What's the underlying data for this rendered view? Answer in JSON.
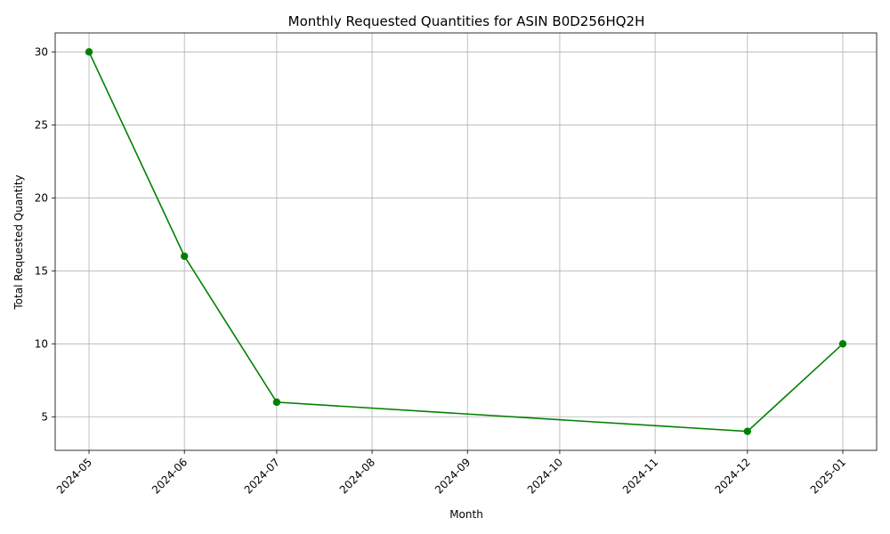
{
  "chart_data": {
    "type": "line",
    "title": "Monthly Requested Quantities for ASIN B0D256HQ2H",
    "xlabel": "Month",
    "ylabel": "Total Requested Quantity",
    "x_ticks": [
      "2024-05",
      "2024-06",
      "2024-07",
      "2024-08",
      "2024-09",
      "2024-10",
      "2024-11",
      "2024-12",
      "2025-01"
    ],
    "y_ticks": [
      5,
      10,
      15,
      20,
      25,
      30
    ],
    "ylim": [
      2.7,
      31.3
    ],
    "xlim": [
      "2024-04-20",
      "2025-01-12"
    ],
    "grid": true,
    "legend": "none",
    "series": [
      {
        "color": "#008000",
        "marker": "circle",
        "x": [
          "2024-05",
          "2024-06",
          "2024-07",
          "2024-12",
          "2025-01"
        ],
        "values": [
          30,
          16,
          6,
          4,
          10
        ]
      }
    ]
  },
  "colors": {
    "line": "#008000",
    "grid": "#b0b0b0",
    "axes": "#000000"
  }
}
